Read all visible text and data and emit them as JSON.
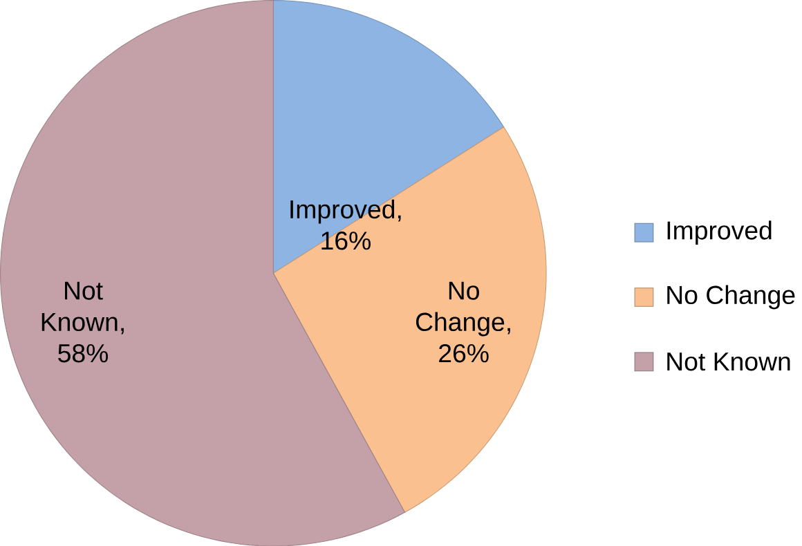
{
  "chart_data": {
    "type": "pie",
    "categories": [
      "Improved",
      "No Change",
      "Not Known"
    ],
    "values": [
      16,
      26,
      58
    ],
    "colors": [
      "#8eb4e3",
      "#fac090",
      "#c4a0a8"
    ],
    "value_labels": [
      "Improved, 16%",
      "No Change, 26%",
      "Not Known, 58%"
    ],
    "legend": "right"
  }
}
